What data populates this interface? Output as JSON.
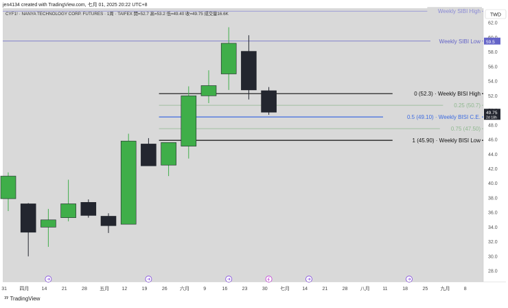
{
  "header": {
    "created_by": "jen4134 created with TradingView.com, 七月 01, 2025 20:22 UTC+8",
    "symbol_line": "CYF1! · NANYA TECHNOLOGY CORP. FUTURES · 1周 · TAIFEX  開=52.7  高=53.2  低=49.40  收=49.75  成交量16.6K",
    "currency": "TWD"
  },
  "footer": {
    "brand": "TradingView"
  },
  "chart_data": {
    "type": "candlestick",
    "y_ticks": [
      28,
      30,
      32,
      34,
      36,
      38,
      40,
      42,
      44,
      46,
      48,
      50,
      52,
      54,
      56,
      58,
      60,
      62
    ],
    "ylim": [
      26.5,
      64
    ],
    "x_labels": [
      "31",
      "四月",
      "14",
      "21",
      "28",
      "五月",
      "12",
      "19",
      "26",
      "六月",
      "9",
      "16",
      "23",
      "30",
      "七月",
      "14",
      "21",
      "28",
      "八月",
      "11",
      "18",
      "25",
      "九月",
      "8"
    ],
    "candles": [
      {
        "o": 37.9,
        "h": 41.5,
        "l": 36.2,
        "c": 41.0
      },
      {
        "o": 37.2,
        "h": 37.3,
        "l": 30.0,
        "c": 33.3
      },
      {
        "o": 34.0,
        "h": 36.5,
        "l": 31.3,
        "c": 35.0
      },
      {
        "o": 35.3,
        "h": 40.5,
        "l": 34.8,
        "c": 37.2
      },
      {
        "o": 37.4,
        "h": 37.8,
        "l": 35.3,
        "c": 35.6
      },
      {
        "o": 35.5,
        "h": 35.9,
        "l": 33.2,
        "c": 34.2
      },
      {
        "o": 34.4,
        "h": 46.8,
        "l": 34.4,
        "c": 45.8
      },
      {
        "o": 45.4,
        "h": 46.2,
        "l": 42.4,
        "c": 42.4
      },
      {
        "o": 42.5,
        "h": 45.6,
        "l": 41.0,
        "c": 45.6
      },
      {
        "o": 45.1,
        "h": 53.3,
        "l": 43.4,
        "c": 52.0
      },
      {
        "o": 52.0,
        "h": 55.5,
        "l": 51.0,
        "c": 53.4
      },
      {
        "o": 55.0,
        "h": 61.4,
        "l": 52.8,
        "c": 59.2
      },
      {
        "o": 58.1,
        "h": 60.3,
        "l": 51.5,
        "c": 52.8
      },
      {
        "o": 52.7,
        "h": 53.2,
        "l": 49.4,
        "c": 49.75
      }
    ],
    "levels": [
      {
        "label": "Weekly SIBI High",
        "value": 63.6,
        "color": "#8b8bd6",
        "from": 0,
        "width": 0.8
      },
      {
        "label": "Weekly SIBI Low",
        "value": 59.5,
        "color": "#6464c8",
        "from": 0,
        "width": 0.8
      },
      {
        "label": "0 (52.3) · Weekly BISI High",
        "value": 52.3,
        "color": "#111111",
        "from": 8,
        "width": 1.2
      },
      {
        "label": "0.25 (50.7)",
        "value": 50.7,
        "color": "#8fb88f",
        "from": 8,
        "width": 0.8
      },
      {
        "label": "0.5 (49.10) · Weekly BISI C.E.",
        "value": 49.1,
        "color": "#3d6be0",
        "from": 8,
        "width": 1.2
      },
      {
        "label": "0.75 (47.50)",
        "value": 47.5,
        "color": "#8fb88f",
        "from": 8,
        "width": 0.8
      },
      {
        "label": "1 (45.90) · Weekly BISI Low",
        "value": 45.9,
        "color": "#111111",
        "from": 8,
        "width": 1.2
      }
    ],
    "axis_badges": [
      {
        "text": "59.5",
        "value": 59.5,
        "color": "#6464c8"
      },
      {
        "text": "49.75",
        "value": 49.75,
        "color": "#23262f",
        "sub": "2d 18h"
      }
    ],
    "colors": {
      "up": "#3fae49",
      "down": "#23262f",
      "background": "#d9d9d9"
    }
  }
}
